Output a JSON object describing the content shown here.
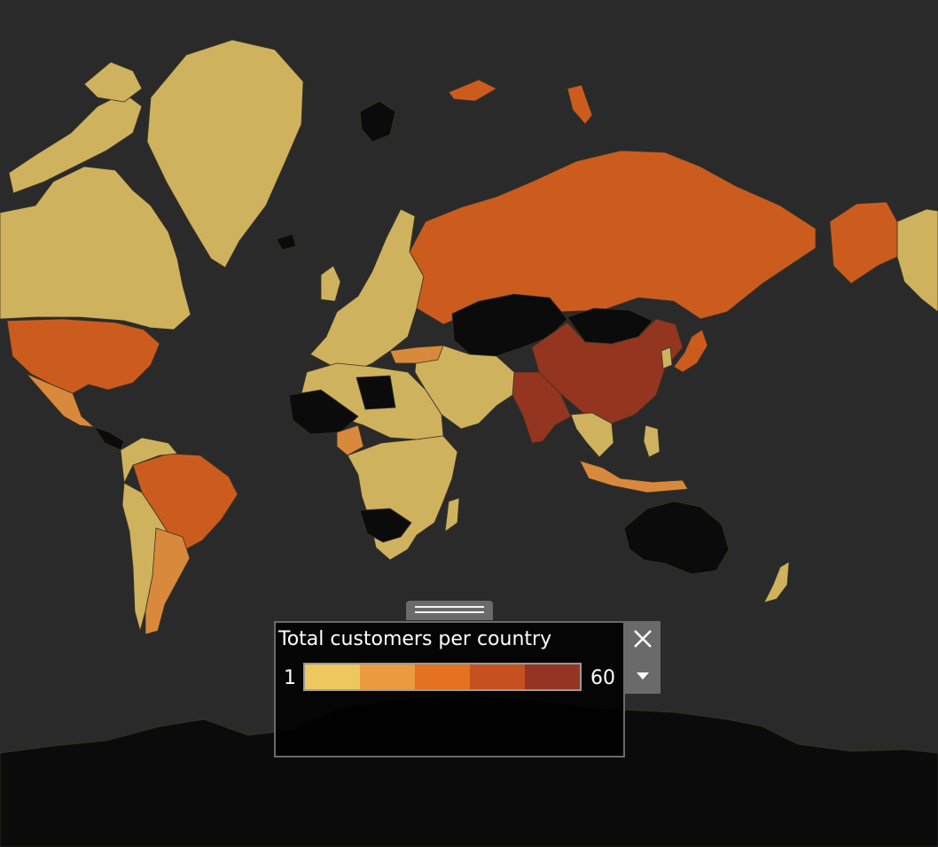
{
  "legend": {
    "title": "Total customers per country",
    "min_label": "1",
    "max_label": "60",
    "ramp_colors": [
      "#ecc85e",
      "#ec9a40",
      "#e4721f",
      "#c6501f",
      "#963424"
    ]
  },
  "colors": {
    "ocean": "#2a2a2a",
    "no_data": "#0b0b0b",
    "tier1": "#cfb25e",
    "tier2": "#d9893c",
    "tier3": "#cc5c1e",
    "tier4": "#94351f"
  },
  "icons": {
    "close": "close-icon",
    "menu": "chevron-down-icon"
  }
}
